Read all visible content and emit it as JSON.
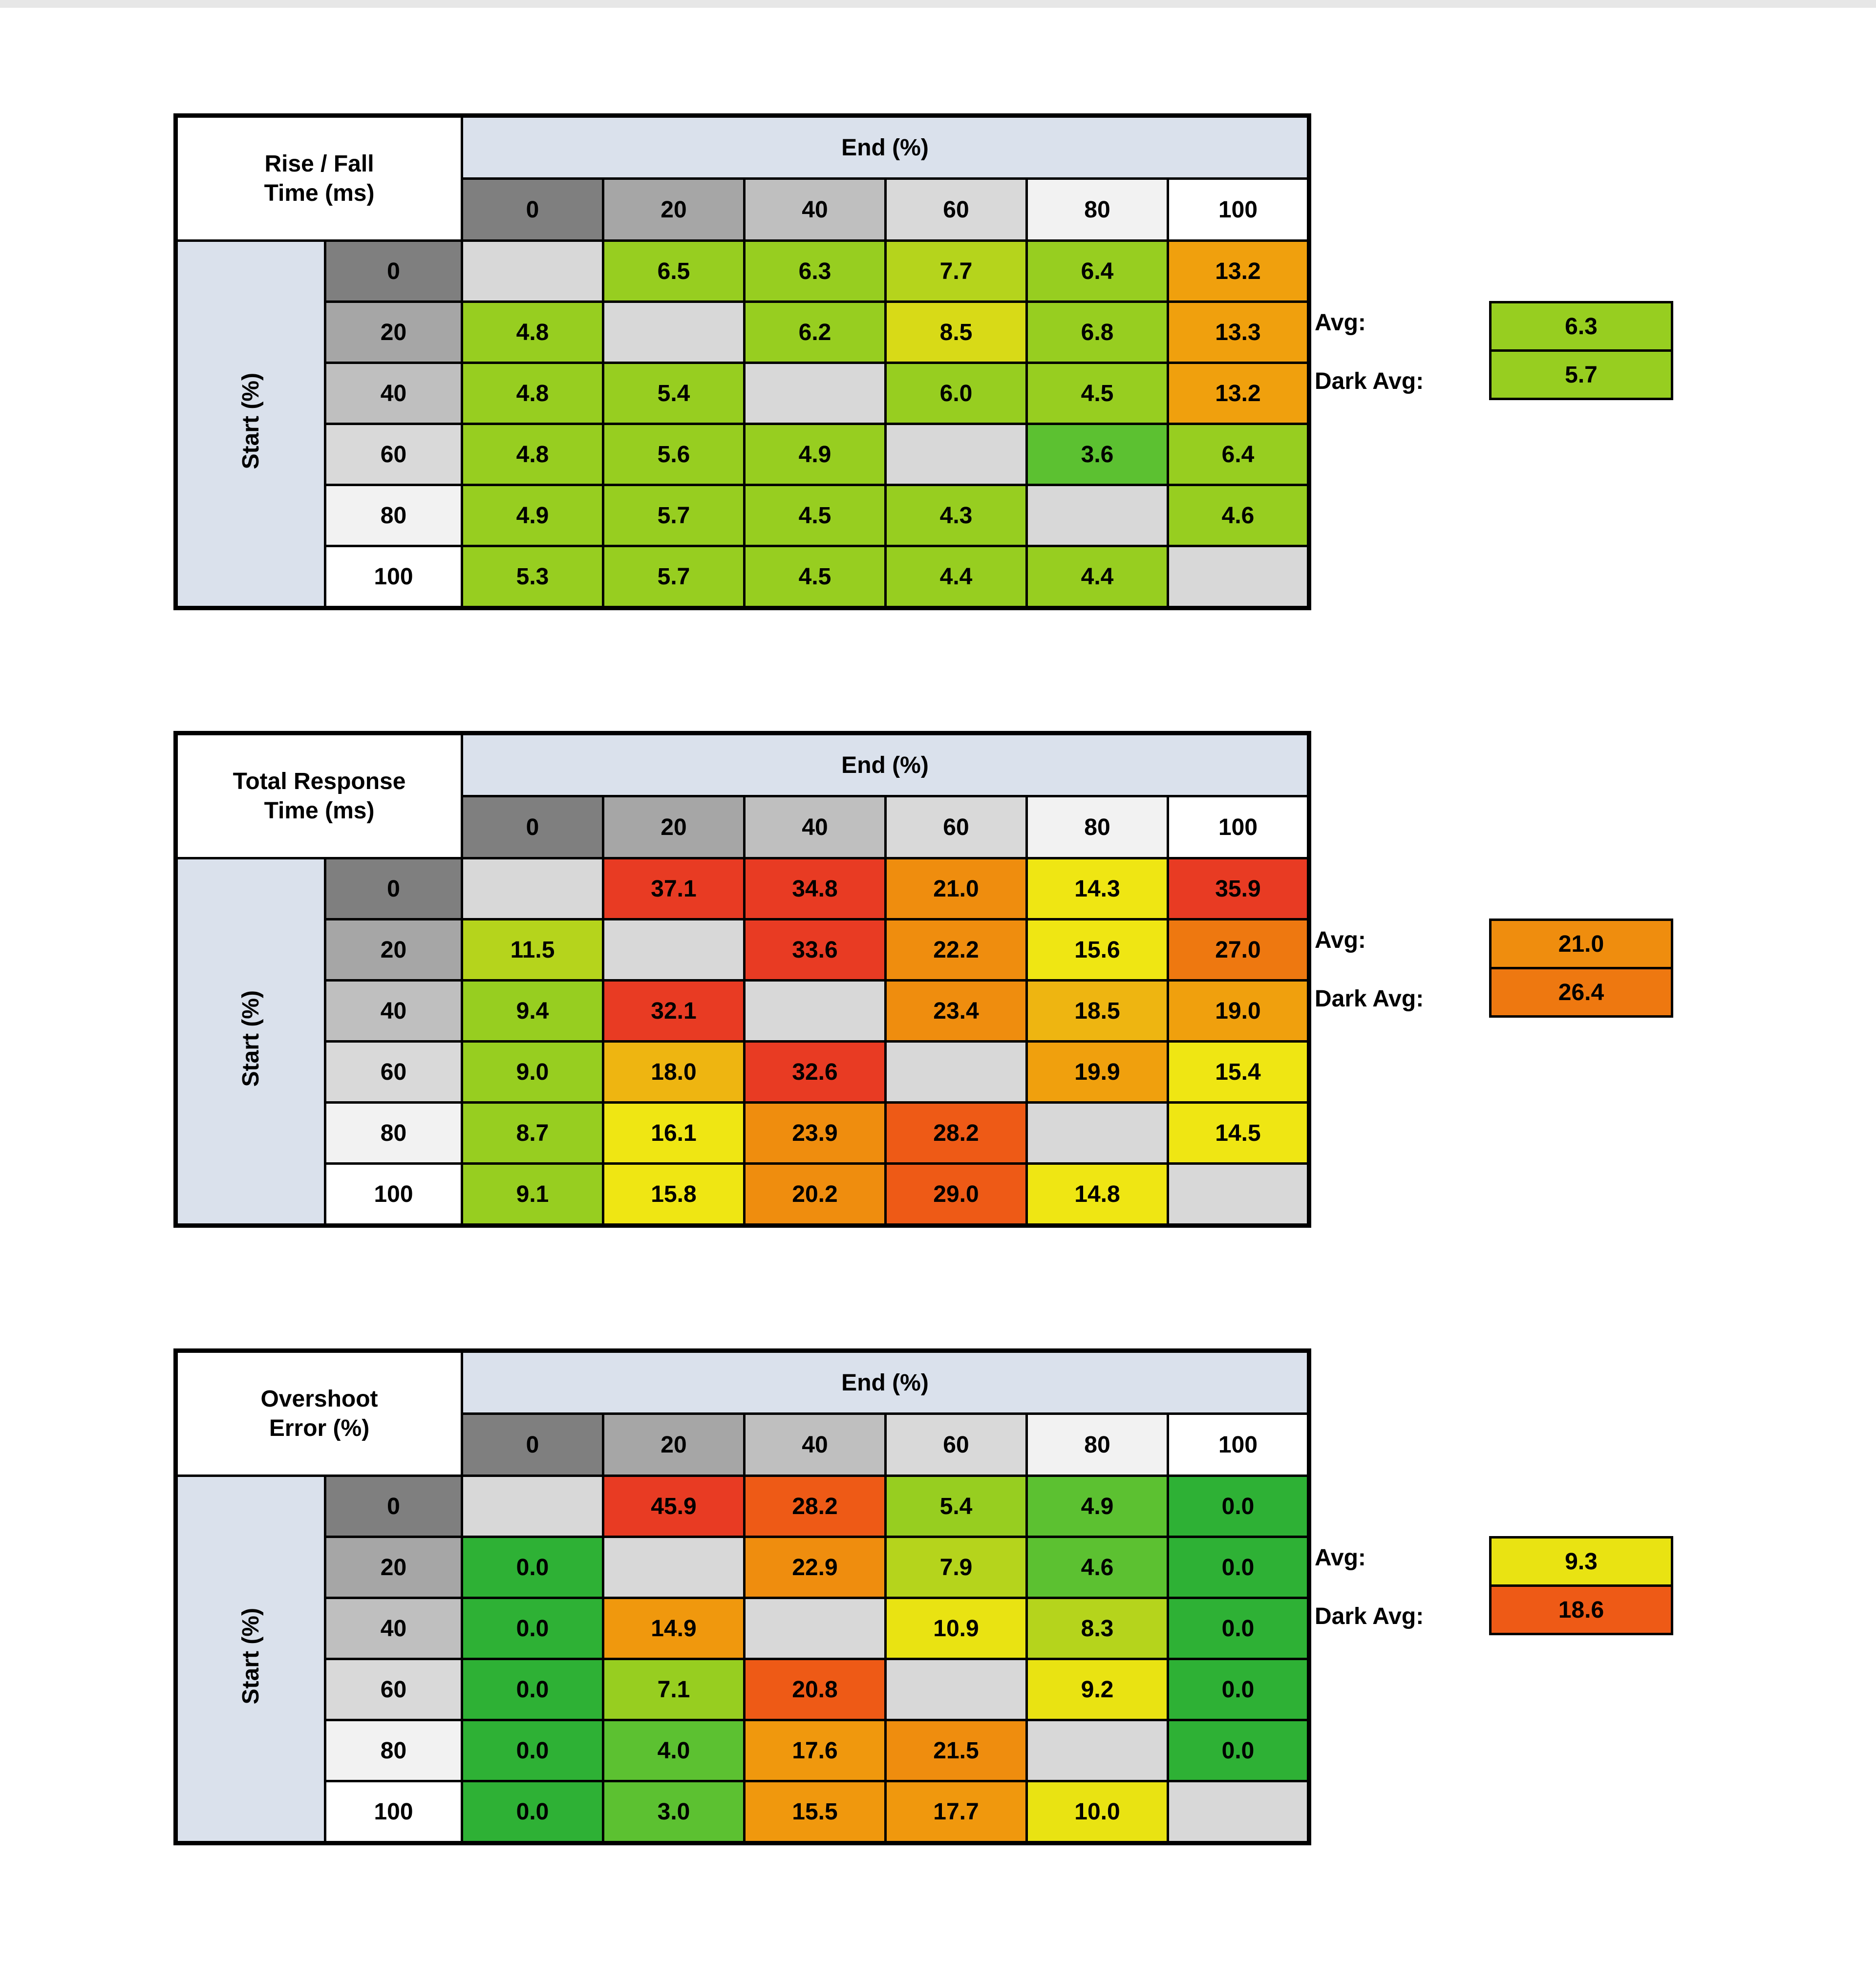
{
  "palette": {
    "header_grays": [
      "#7f7f7f",
      "#a6a6a6",
      "#bfbfbf",
      "#d9d9d9",
      "#f2f2f2",
      "#ffffff"
    ],
    "header_blue": "#dae1ec",
    "blank": "#d8d8d8",
    "green": "#2eb135",
    "yellow_green": "#97ce20",
    "yellow": "#efe613",
    "orange": "#ef8d0e",
    "red": "#e83b23"
  },
  "layout": {
    "side_col": 306,
    "label_col": 280,
    "data_col": 289
  },
  "tables": [
    {
      "title_line1": "Rise / Fall",
      "title_line2": "Time (ms)",
      "end_header": "End (%)",
      "side_label": "Start (%)",
      "col_labels": [
        "0",
        "20",
        "40",
        "60",
        "80",
        "100"
      ],
      "avg_label": "Avg:",
      "dark_avg_label": "Dark Avg:",
      "avg": {
        "value": "6.3",
        "color": "#97ce20"
      },
      "dark_avg": {
        "value": "5.7",
        "color": "#97ce20"
      },
      "rows": [
        {
          "label": "0",
          "cells": [
            {
              "v": "",
              "c": "#d8d8d8"
            },
            {
              "v": "6.5",
              "c": "#97ce20"
            },
            {
              "v": "6.3",
              "c": "#97ce20"
            },
            {
              "v": "7.7",
              "c": "#b5d41c"
            },
            {
              "v": "6.4",
              "c": "#97ce20"
            },
            {
              "v": "13.2",
              "c": "#f0a00d"
            }
          ]
        },
        {
          "label": "20",
          "cells": [
            {
              "v": "4.8",
              "c": "#97ce20"
            },
            {
              "v": "",
              "c": "#d8d8d8"
            },
            {
              "v": "6.2",
              "c": "#97ce20"
            },
            {
              "v": "8.5",
              "c": "#d8da17"
            },
            {
              "v": "6.8",
              "c": "#97ce20"
            },
            {
              "v": "13.3",
              "c": "#f0a00d"
            }
          ]
        },
        {
          "label": "40",
          "cells": [
            {
              "v": "4.8",
              "c": "#97ce20"
            },
            {
              "v": "5.4",
              "c": "#97ce20"
            },
            {
              "v": "",
              "c": "#d8d8d8"
            },
            {
              "v": "6.0",
              "c": "#97ce20"
            },
            {
              "v": "4.5",
              "c": "#97ce20"
            },
            {
              "v": "13.2",
              "c": "#f0a00d"
            }
          ]
        },
        {
          "label": "60",
          "cells": [
            {
              "v": "4.8",
              "c": "#97ce20"
            },
            {
              "v": "5.6",
              "c": "#97ce20"
            },
            {
              "v": "4.9",
              "c": "#97ce20"
            },
            {
              "v": "",
              "c": "#d8d8d8"
            },
            {
              "v": "3.6",
              "c": "#5cc131"
            },
            {
              "v": "6.4",
              "c": "#97ce20"
            }
          ]
        },
        {
          "label": "80",
          "cells": [
            {
              "v": "4.9",
              "c": "#97ce20"
            },
            {
              "v": "5.7",
              "c": "#97ce20"
            },
            {
              "v": "4.5",
              "c": "#97ce20"
            },
            {
              "v": "4.3",
              "c": "#97ce20"
            },
            {
              "v": "",
              "c": "#d8d8d8"
            },
            {
              "v": "4.6",
              "c": "#97ce20"
            }
          ]
        },
        {
          "label": "100",
          "cells": [
            {
              "v": "5.3",
              "c": "#97ce20"
            },
            {
              "v": "5.7",
              "c": "#97ce20"
            },
            {
              "v": "4.5",
              "c": "#97ce20"
            },
            {
              "v": "4.4",
              "c": "#97ce20"
            },
            {
              "v": "4.4",
              "c": "#97ce20"
            },
            {
              "v": "",
              "c": "#d8d8d8"
            }
          ]
        }
      ]
    },
    {
      "title_line1": "Total Response",
      "title_line2": "Time (ms)",
      "end_header": "End (%)",
      "side_label": "Start (%)",
      "col_labels": [
        "0",
        "20",
        "40",
        "60",
        "80",
        "100"
      ],
      "avg_label": "Avg:",
      "dark_avg_label": "Dark Avg:",
      "avg": {
        "value": "21.0",
        "color": "#ef8d0e"
      },
      "dark_avg": {
        "value": "26.4",
        "color": "#ee7810"
      },
      "rows": [
        {
          "label": "0",
          "cells": [
            {
              "v": "",
              "c": "#d8d8d8"
            },
            {
              "v": "37.1",
              "c": "#e83b23"
            },
            {
              "v": "34.8",
              "c": "#e83b23"
            },
            {
              "v": "21.0",
              "c": "#ef8d0e"
            },
            {
              "v": "14.3",
              "c": "#efe613"
            },
            {
              "v": "35.9",
              "c": "#e83b23"
            }
          ]
        },
        {
          "label": "20",
          "cells": [
            {
              "v": "11.5",
              "c": "#b5d41c"
            },
            {
              "v": "",
              "c": "#d8d8d8"
            },
            {
              "v": "33.6",
              "c": "#e83b23"
            },
            {
              "v": "22.2",
              "c": "#ef8d0e"
            },
            {
              "v": "15.6",
              "c": "#efe613"
            },
            {
              "v": "27.0",
              "c": "#ee7810"
            }
          ]
        },
        {
          "label": "40",
          "cells": [
            {
              "v": "9.4",
              "c": "#97ce20"
            },
            {
              "v": "32.1",
              "c": "#e83b23"
            },
            {
              "v": "",
              "c": "#d8d8d8"
            },
            {
              "v": "23.4",
              "c": "#ef8d0e"
            },
            {
              "v": "18.5",
              "c": "#eeb511"
            },
            {
              "v": "19.0",
              "c": "#f0a00d"
            }
          ]
        },
        {
          "label": "60",
          "cells": [
            {
              "v": "9.0",
              "c": "#97ce20"
            },
            {
              "v": "18.0",
              "c": "#eeb511"
            },
            {
              "v": "32.6",
              "c": "#e83b23"
            },
            {
              "v": "",
              "c": "#d8d8d8"
            },
            {
              "v": "19.9",
              "c": "#f0a00d"
            },
            {
              "v": "15.4",
              "c": "#efe613"
            }
          ]
        },
        {
          "label": "80",
          "cells": [
            {
              "v": "8.7",
              "c": "#97ce20"
            },
            {
              "v": "16.1",
              "c": "#efe613"
            },
            {
              "v": "23.9",
              "c": "#ef8d0e"
            },
            {
              "v": "28.2",
              "c": "#ee5a16"
            },
            {
              "v": "",
              "c": "#d8d8d8"
            },
            {
              "v": "14.5",
              "c": "#efe613"
            }
          ]
        },
        {
          "label": "100",
          "cells": [
            {
              "v": "9.1",
              "c": "#97ce20"
            },
            {
              "v": "15.8",
              "c": "#efe613"
            },
            {
              "v": "20.2",
              "c": "#ef8d0e"
            },
            {
              "v": "29.0",
              "c": "#ee5a16"
            },
            {
              "v": "14.8",
              "c": "#efe613"
            },
            {
              "v": "",
              "c": "#d8d8d8"
            }
          ]
        }
      ]
    },
    {
      "title_line1": "Overshoot",
      "title_line2": "Error (%)",
      "end_header": "End (%)",
      "side_label": "Start (%)",
      "col_labels": [
        "0",
        "20",
        "40",
        "60",
        "80",
        "100"
      ],
      "avg_label": "Avg:",
      "dark_avg_label": "Dark Avg:",
      "avg": {
        "value": "9.3",
        "color": "#e9e312"
      },
      "dark_avg": {
        "value": "18.6",
        "color": "#ee5a16"
      },
      "rows": [
        {
          "label": "0",
          "cells": [
            {
              "v": "",
              "c": "#d8d8d8"
            },
            {
              "v": "45.9",
              "c": "#e83b23"
            },
            {
              "v": "28.2",
              "c": "#ee5a16"
            },
            {
              "v": "5.4",
              "c": "#97ce20"
            },
            {
              "v": "4.9",
              "c": "#5cc131"
            },
            {
              "v": "0.0",
              "c": "#2eb135"
            }
          ]
        },
        {
          "label": "20",
          "cells": [
            {
              "v": "0.0",
              "c": "#2eb135"
            },
            {
              "v": "",
              "c": "#d8d8d8"
            },
            {
              "v": "22.9",
              "c": "#ef8d0e"
            },
            {
              "v": "7.9",
              "c": "#b5d41c"
            },
            {
              "v": "4.6",
              "c": "#5cc131"
            },
            {
              "v": "0.0",
              "c": "#2eb135"
            }
          ]
        },
        {
          "label": "40",
          "cells": [
            {
              "v": "0.0",
              "c": "#2eb135"
            },
            {
              "v": "14.9",
              "c": "#f0980d"
            },
            {
              "v": "",
              "c": "#d8d8d8"
            },
            {
              "v": "10.9",
              "c": "#e9e312"
            },
            {
              "v": "8.3",
              "c": "#b5d41c"
            },
            {
              "v": "0.0",
              "c": "#2eb135"
            }
          ]
        },
        {
          "label": "60",
          "cells": [
            {
              "v": "0.0",
              "c": "#2eb135"
            },
            {
              "v": "7.1",
              "c": "#97ce20"
            },
            {
              "v": "20.8",
              "c": "#ee5a16"
            },
            {
              "v": "",
              "c": "#d8d8d8"
            },
            {
              "v": "9.2",
              "c": "#e9e312"
            },
            {
              "v": "0.0",
              "c": "#2eb135"
            }
          ]
        },
        {
          "label": "80",
          "cells": [
            {
              "v": "0.0",
              "c": "#2eb135"
            },
            {
              "v": "4.0",
              "c": "#5cc131"
            },
            {
              "v": "17.6",
              "c": "#f0980d"
            },
            {
              "v": "21.5",
              "c": "#ef8d0e"
            },
            {
              "v": "",
              "c": "#d8d8d8"
            },
            {
              "v": "0.0",
              "c": "#2eb135"
            }
          ]
        },
        {
          "label": "100",
          "cells": [
            {
              "v": "0.0",
              "c": "#2eb135"
            },
            {
              "v": "3.0",
              "c": "#5cc131"
            },
            {
              "v": "15.5",
              "c": "#f0980d"
            },
            {
              "v": "17.7",
              "c": "#f0980d"
            },
            {
              "v": "10.0",
              "c": "#e9e312"
            },
            {
              "v": "",
              "c": "#d8d8d8"
            }
          ]
        }
      ]
    }
  ],
  "chart_data": [
    {
      "type": "heatmap",
      "title": "Rise / Fall Time (ms)",
      "xlabel": "End (%)",
      "ylabel": "Start (%)",
      "x": [
        0,
        20,
        40,
        60,
        80,
        100
      ],
      "y": [
        0,
        20,
        40,
        60,
        80,
        100
      ],
      "values": [
        [
          null,
          6.5,
          6.3,
          7.7,
          6.4,
          13.2
        ],
        [
          4.8,
          null,
          6.2,
          8.5,
          6.8,
          13.3
        ],
        [
          4.8,
          5.4,
          null,
          6.0,
          4.5,
          13.2
        ],
        [
          4.8,
          5.6,
          4.9,
          null,
          3.6,
          6.4
        ],
        [
          4.9,
          5.7,
          4.5,
          4.3,
          null,
          4.6
        ],
        [
          5.3,
          5.7,
          4.5,
          4.4,
          4.4,
          null
        ]
      ],
      "avg": 6.3,
      "dark_avg": 5.7
    },
    {
      "type": "heatmap",
      "title": "Total Response Time (ms)",
      "xlabel": "End (%)",
      "ylabel": "Start (%)",
      "x": [
        0,
        20,
        40,
        60,
        80,
        100
      ],
      "y": [
        0,
        20,
        40,
        60,
        80,
        100
      ],
      "values": [
        [
          null,
          37.1,
          34.8,
          21.0,
          14.3,
          35.9
        ],
        [
          11.5,
          null,
          33.6,
          22.2,
          15.6,
          27.0
        ],
        [
          9.4,
          32.1,
          null,
          23.4,
          18.5,
          19.0
        ],
        [
          9.0,
          18.0,
          32.6,
          null,
          19.9,
          15.4
        ],
        [
          8.7,
          16.1,
          23.9,
          28.2,
          null,
          14.5
        ],
        [
          9.1,
          15.8,
          20.2,
          29.0,
          14.8,
          null
        ]
      ],
      "avg": 21.0,
      "dark_avg": 26.4
    },
    {
      "type": "heatmap",
      "title": "Overshoot Error (%)",
      "xlabel": "End (%)",
      "ylabel": "Start (%)",
      "x": [
        0,
        20,
        40,
        60,
        80,
        100
      ],
      "y": [
        0,
        20,
        40,
        60,
        80,
        100
      ],
      "values": [
        [
          null,
          45.9,
          28.2,
          5.4,
          4.9,
          0.0
        ],
        [
          0.0,
          null,
          22.9,
          7.9,
          4.6,
          0.0
        ],
        [
          0.0,
          14.9,
          null,
          10.9,
          8.3,
          0.0
        ],
        [
          0.0,
          7.1,
          20.8,
          null,
          9.2,
          0.0
        ],
        [
          0.0,
          4.0,
          17.6,
          21.5,
          null,
          0.0
        ],
        [
          0.0,
          3.0,
          15.5,
          17.7,
          10.0,
          null
        ]
      ],
      "avg": 9.3,
      "dark_avg": 18.6
    }
  ]
}
